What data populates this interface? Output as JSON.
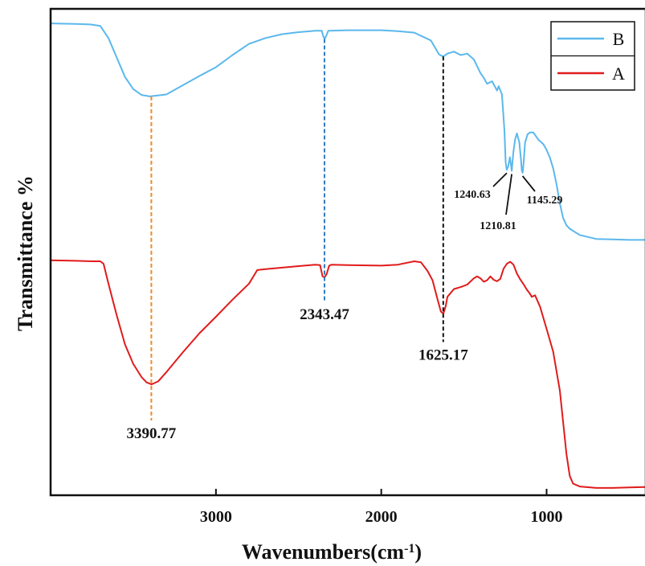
{
  "chart_data": {
    "type": "line",
    "title": "",
    "xlabel": "Wavenumbers(cm",
    "xlabel_sup": "-1",
    "xlabel_close": ")",
    "ylabel": "Transmittance %",
    "x_reversed": true,
    "xlim": [
      4000,
      400
    ],
    "ylim": [
      0,
      100
    ],
    "y_ticks_visible": false,
    "grid": false,
    "legend_position": "top-right",
    "x_ticks": [
      {
        "value": 3000,
        "label": "3000"
      },
      {
        "value": 2000,
        "label": "2000"
      },
      {
        "value": 1000,
        "label": "1000"
      }
    ],
    "series": [
      {
        "name": "B",
        "color": "#5bb8ec",
        "points": [
          [
            4000,
            97.0
          ],
          [
            3850,
            96.9
          ],
          [
            3760,
            96.8
          ],
          [
            3700,
            96.5
          ],
          [
            3650,
            94.0
          ],
          [
            3600,
            90.0
          ],
          [
            3550,
            86.0
          ],
          [
            3500,
            83.5
          ],
          [
            3450,
            82.3
          ],
          [
            3400,
            82.0
          ],
          [
            3300,
            82.4
          ],
          [
            3200,
            84.3
          ],
          [
            3100,
            86.2
          ],
          [
            3000,
            88.0
          ],
          [
            2900,
            90.5
          ],
          [
            2800,
            92.8
          ],
          [
            2700,
            94.0
          ],
          [
            2600,
            94.8
          ],
          [
            2500,
            95.2
          ],
          [
            2400,
            95.5
          ],
          [
            2360,
            95.5
          ],
          [
            2350,
            94.3
          ],
          [
            2343,
            93.8
          ],
          [
            2335,
            94.3
          ],
          [
            2320,
            95.5
          ],
          [
            2200,
            95.6
          ],
          [
            2000,
            95.6
          ],
          [
            1900,
            95.4
          ],
          [
            1800,
            95.1
          ],
          [
            1700,
            93.5
          ],
          [
            1650,
            90.6
          ],
          [
            1625,
            90.2
          ],
          [
            1600,
            90.8
          ],
          [
            1560,
            91.2
          ],
          [
            1520,
            90.5
          ],
          [
            1480,
            90.8
          ],
          [
            1440,
            89.6
          ],
          [
            1400,
            86.8
          ],
          [
            1380,
            85.8
          ],
          [
            1360,
            84.6
          ],
          [
            1330,
            85.1
          ],
          [
            1300,
            83.2
          ],
          [
            1290,
            84.1
          ],
          [
            1270,
            82.4
          ],
          [
            1255,
            75.0
          ],
          [
            1248,
            68.5
          ],
          [
            1241,
            66.9
          ],
          [
            1232,
            67.6
          ],
          [
            1222,
            69.5
          ],
          [
            1215,
            67.8
          ],
          [
            1211,
            66.7
          ],
          [
            1200,
            70.8
          ],
          [
            1190,
            73.2
          ],
          [
            1180,
            74.4
          ],
          [
            1165,
            72.6
          ],
          [
            1155,
            69.0
          ],
          [
            1150,
            66.8
          ],
          [
            1145,
            66.3
          ],
          [
            1140,
            68.0
          ],
          [
            1130,
            72.5
          ],
          [
            1115,
            74.2
          ],
          [
            1100,
            74.6
          ],
          [
            1080,
            74.6
          ],
          [
            1050,
            73.1
          ],
          [
            1020,
            72.2
          ],
          [
            1000,
            71.0
          ],
          [
            980,
            69.4
          ],
          [
            960,
            67.2
          ],
          [
            940,
            63.9
          ],
          [
            920,
            60.0
          ],
          [
            900,
            57.0
          ],
          [
            880,
            55.5
          ],
          [
            860,
            54.8
          ],
          [
            800,
            53.5
          ],
          [
            700,
            52.7
          ],
          [
            600,
            52.6
          ],
          [
            500,
            52.5
          ],
          [
            400,
            52.5
          ]
        ]
      },
      {
        "name": "A",
        "color": "#e11b1b",
        "points": [
          [
            4000,
            48.3
          ],
          [
            3850,
            48.2
          ],
          [
            3750,
            48.1
          ],
          [
            3700,
            48.1
          ],
          [
            3680,
            47.6
          ],
          [
            3650,
            43.5
          ],
          [
            3600,
            37.0
          ],
          [
            3550,
            31.0
          ],
          [
            3500,
            27.0
          ],
          [
            3450,
            24.3
          ],
          [
            3420,
            23.2
          ],
          [
            3390,
            22.8
          ],
          [
            3350,
            23.4
          ],
          [
            3300,
            25.3
          ],
          [
            3200,
            29.4
          ],
          [
            3100,
            33.3
          ],
          [
            3000,
            36.7
          ],
          [
            2900,
            40.2
          ],
          [
            2800,
            43.5
          ],
          [
            2750,
            46.3
          ],
          [
            2700,
            46.5
          ],
          [
            2600,
            46.8
          ],
          [
            2500,
            47.1
          ],
          [
            2400,
            47.4
          ],
          [
            2370,
            47.3
          ],
          [
            2355,
            45.0
          ],
          [
            2343,
            44.8
          ],
          [
            2330,
            45.5
          ],
          [
            2315,
            47.2
          ],
          [
            2300,
            47.4
          ],
          [
            2200,
            47.3
          ],
          [
            2000,
            47.2
          ],
          [
            1900,
            47.4
          ],
          [
            1800,
            48.1
          ],
          [
            1760,
            47.9
          ],
          [
            1720,
            46.1
          ],
          [
            1690,
            44.2
          ],
          [
            1660,
            40.3
          ],
          [
            1640,
            37.8
          ],
          [
            1625,
            37.3
          ],
          [
            1610,
            38.9
          ],
          [
            1600,
            40.8
          ],
          [
            1560,
            42.4
          ],
          [
            1520,
            42.8
          ],
          [
            1480,
            43.3
          ],
          [
            1440,
            44.6
          ],
          [
            1420,
            45.0
          ],
          [
            1400,
            44.6
          ],
          [
            1380,
            43.9
          ],
          [
            1360,
            44.2
          ],
          [
            1340,
            45.0
          ],
          [
            1320,
            44.3
          ],
          [
            1300,
            44.0
          ],
          [
            1280,
            44.5
          ],
          [
            1260,
            46.6
          ],
          [
            1240,
            47.6
          ],
          [
            1220,
            48.0
          ],
          [
            1200,
            47.4
          ],
          [
            1180,
            45.6
          ],
          [
            1160,
            44.4
          ],
          [
            1140,
            43.4
          ],
          [
            1120,
            42.3
          ],
          [
            1100,
            41.4
          ],
          [
            1090,
            40.8
          ],
          [
            1070,
            41.1
          ],
          [
            1040,
            38.8
          ],
          [
            1000,
            34.2
          ],
          [
            960,
            29.5
          ],
          [
            920,
            21.5
          ],
          [
            900,
            15.0
          ],
          [
            880,
            8.5
          ],
          [
            860,
            4.0
          ],
          [
            840,
            2.4
          ],
          [
            800,
            1.8
          ],
          [
            700,
            1.5
          ],
          [
            600,
            1.5
          ],
          [
            500,
            1.6
          ],
          [
            400,
            1.7
          ]
        ]
      }
    ],
    "annotations": [
      {
        "label": "3390.77",
        "x": 3390.77,
        "y_top": 82.0,
        "y_bottom": 22.8,
        "line_color": "#f08a2c",
        "style": "large"
      },
      {
        "label": "2343.47",
        "x": 2343.47,
        "y_top": 93.8,
        "y_bottom": 44.8,
        "line_color": "#2f7bc0",
        "style": "large"
      },
      {
        "label": "1625.17",
        "x": 1625.17,
        "y_top": 90.2,
        "y_bottom": 37.3,
        "line_color": "#111111",
        "style": "large"
      },
      {
        "label": "1240.63",
        "x": 1240.63,
        "y": 66.9,
        "style": "small"
      },
      {
        "label": "1210.81",
        "x": 1210.81,
        "y": 66.7,
        "style": "small"
      },
      {
        "label": "1145.29",
        "x": 1145.29,
        "y": 66.3,
        "style": "small"
      }
    ]
  }
}
